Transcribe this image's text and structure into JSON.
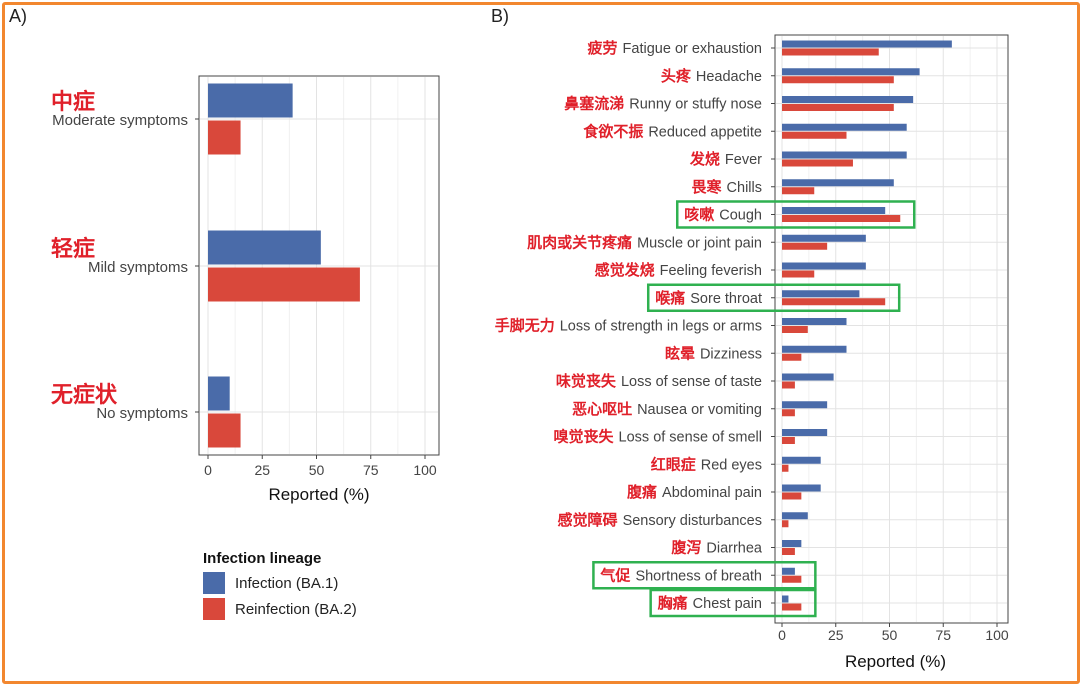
{
  "chart_data": [
    {
      "type": "bar",
      "panel_label": "A)",
      "orientation": "horizontal",
      "categories": [
        {
          "zh": "中症",
          "en": "Moderate symptoms"
        },
        {
          "zh": "轻症",
          "en": "Mild symptoms"
        },
        {
          "zh": "无症状",
          "en": "No symptoms"
        }
      ],
      "series": [
        {
          "name": "Infection (BA.1)",
          "color": "#4a6ba9",
          "values": [
            39,
            52,
            10
          ]
        },
        {
          "name": "Reinfection (BA.2)",
          "color": "#d9483b",
          "values": [
            15,
            70,
            15
          ]
        }
      ],
      "xlabel": "Reported (%)",
      "xticks": [
        "0",
        "25",
        "50",
        "75",
        "100"
      ],
      "xlim": [
        0,
        100
      ],
      "grid": true
    },
    {
      "type": "bar",
      "panel_label": "B)",
      "orientation": "horizontal",
      "categories": [
        {
          "zh": "疲劳",
          "en": "Fatigue or exhaustion"
        },
        {
          "zh": "头疼",
          "en": "Headache"
        },
        {
          "zh": "鼻塞流涕",
          "en": "Runny or stuffy nose"
        },
        {
          "zh": "食欲不振",
          "en": "Reduced appetite"
        },
        {
          "zh": "发烧",
          "en": "Fever"
        },
        {
          "zh": "畏寒",
          "en": "Chills"
        },
        {
          "zh": "咳嗽",
          "en": "Cough",
          "highlight": true
        },
        {
          "zh": "肌肉或关节疼痛",
          "en": "Muscle or joint pain"
        },
        {
          "zh": "感觉发烧",
          "en": "Feeling feverish"
        },
        {
          "zh": "喉痛",
          "en": "Sore throat",
          "highlight": true
        },
        {
          "zh": "手脚无力",
          "en": "Loss of strength in legs or arms"
        },
        {
          "zh": "眩晕",
          "en": "Dizziness"
        },
        {
          "zh": "味觉丧失",
          "en": "Loss of sense of taste"
        },
        {
          "zh": "恶心呕吐",
          "en": "Nausea or vomiting"
        },
        {
          "zh": "嗅觉丧失",
          "en": "Loss of sense of smell"
        },
        {
          "zh": "红眼症",
          "en": "Red eyes"
        },
        {
          "zh": "腹痛",
          "en": "Abdominal pain"
        },
        {
          "zh": "感觉障碍",
          "en": "Sensory disturbances"
        },
        {
          "zh": "腹泻",
          "en": "Diarrhea"
        },
        {
          "zh": "气促",
          "en": "Shortness of breath",
          "highlight": true
        },
        {
          "zh": "胸痛",
          "en": "Chest pain",
          "highlight": true
        }
      ],
      "series": [
        {
          "name": "Infection (BA.1)",
          "color": "#4a6ba9",
          "values": [
            79,
            64,
            61,
            58,
            58,
            52,
            48,
            39,
            39,
            36,
            30,
            30,
            24,
            21,
            21,
            18,
            18,
            12,
            9,
            6,
            3
          ]
        },
        {
          "name": "Reinfection (BA.2)",
          "color": "#d9483b",
          "values": [
            45,
            52,
            52,
            30,
            33,
            15,
            55,
            21,
            15,
            48,
            12,
            9,
            6,
            6,
            6,
            3,
            9,
            3,
            6,
            9,
            9
          ]
        }
      ],
      "xlabel": "Reported (%)",
      "xticks": [
        "0",
        "25",
        "50",
        "75",
        "100"
      ],
      "xlim": [
        0,
        100
      ],
      "grid": true
    }
  ],
  "legend": {
    "title": "Infection lineage",
    "items": [
      {
        "label": "Infection (BA.1)",
        "color": "#4a6ba9"
      },
      {
        "label": "Reinfection (BA.2)",
        "color": "#d9483b"
      }
    ]
  },
  "colors": {
    "frame": "#f2872f",
    "highlight_box": "#2fb150",
    "chinese_label": "#e0202a"
  }
}
